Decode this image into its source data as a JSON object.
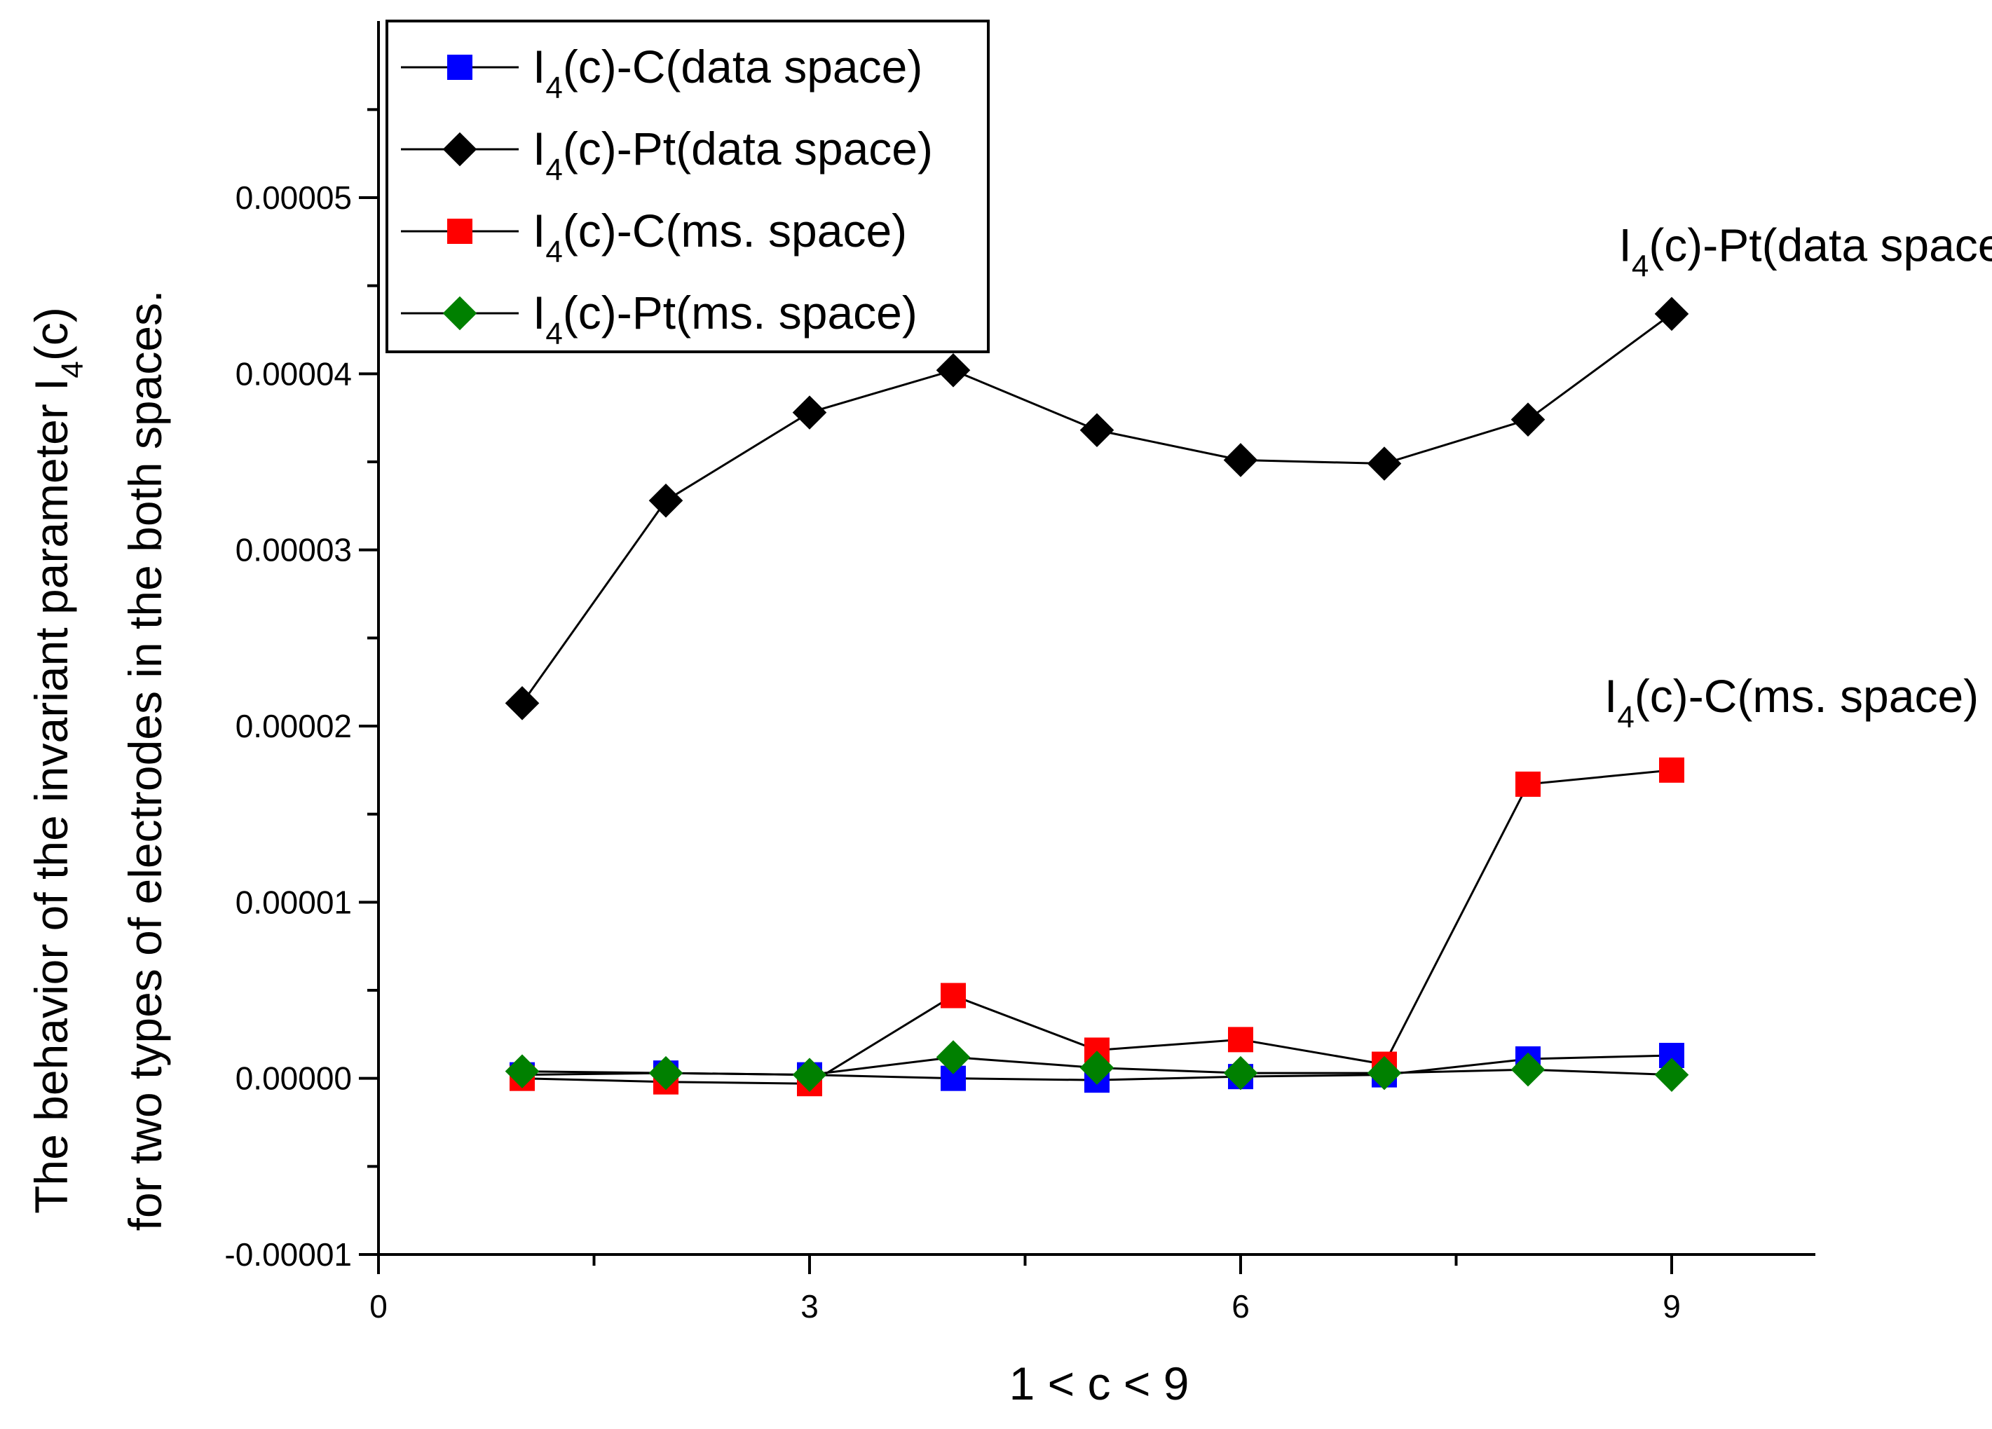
{
  "chart_data": {
    "type": "line",
    "title": "",
    "xlabel": "1 < c < 9",
    "ylabel_line1": "The behavior of the invariant parameter I",
    "ylabel_line1_sub": "4",
    "ylabel_line1_tail": "(c)",
    "ylabel_line2": "for two types of electrodes in the both spaces.",
    "xlim": [
      0,
      10
    ],
    "ylim": [
      -1e-05,
      6e-05
    ],
    "x_ticks": [
      0,
      3,
      6,
      9
    ],
    "x_tick_labels": [
      "0",
      "3",
      "6",
      "9"
    ],
    "y_ticks": [
      -1e-05,
      0,
      1e-05,
      2e-05,
      3e-05,
      4e-05,
      5e-05
    ],
    "y_tick_labels": [
      "-0.00001",
      "0.00000",
      "0.00001",
      "0.00002",
      "0.00003",
      "0.00004",
      "0.00005"
    ],
    "legend_position": "top-left",
    "x": [
      1,
      2,
      3,
      4,
      5,
      6,
      7,
      8,
      9
    ],
    "series": [
      {
        "id": "c-data",
        "name_pre": "I",
        "name_sub": "4",
        "name_post": "(c)-C(data space)",
        "marker": "square",
        "color": "#0000ff",
        "values": [
          2e-07,
          3e-07,
          2e-07,
          0.0,
          -1e-07,
          1e-07,
          2e-07,
          1.1e-06,
          1.3e-06
        ]
      },
      {
        "id": "pt-data",
        "name_pre": "I",
        "name_sub": "4",
        "name_post": "(c)-Pt(data space)",
        "marker": "diamond",
        "color": "#000000",
        "values": [
          2.13e-05,
          3.28e-05,
          3.78e-05,
          4.02e-05,
          3.68e-05,
          3.51e-05,
          3.49e-05,
          3.74e-05,
          4.34e-05
        ]
      },
      {
        "id": "c-ms",
        "name_pre": "I",
        "name_sub": "4",
        "name_post": "(c)-C(ms. space)",
        "marker": "square",
        "color": "#ff0000",
        "values": [
          0.0,
          -2e-07,
          -3e-07,
          4.7e-06,
          1.6e-06,
          2.2e-06,
          8e-07,
          1.67e-05,
          1.75e-05
        ]
      },
      {
        "id": "pt-ms",
        "name_pre": "I",
        "name_sub": "4",
        "name_post": "(c)-Pt(ms. space)",
        "marker": "diamond",
        "color": "#008000",
        "values": [
          4e-07,
          3e-07,
          2e-07,
          1.2e-06,
          6e-07,
          3e-07,
          3e-07,
          5e-07,
          2e-07
        ]
      }
    ],
    "annotations": [
      {
        "id": "pt-data",
        "pre": "I",
        "sub": "4",
        "post": "(c)-Pt(data space)",
        "x": 9.5,
        "y": 4.64e-05
      },
      {
        "id": "c-ms",
        "pre": "I",
        "sub": "4",
        "post": "(c)-C(ms. space)",
        "x": 9.4,
        "y": 2.08e-05
      }
    ]
  }
}
